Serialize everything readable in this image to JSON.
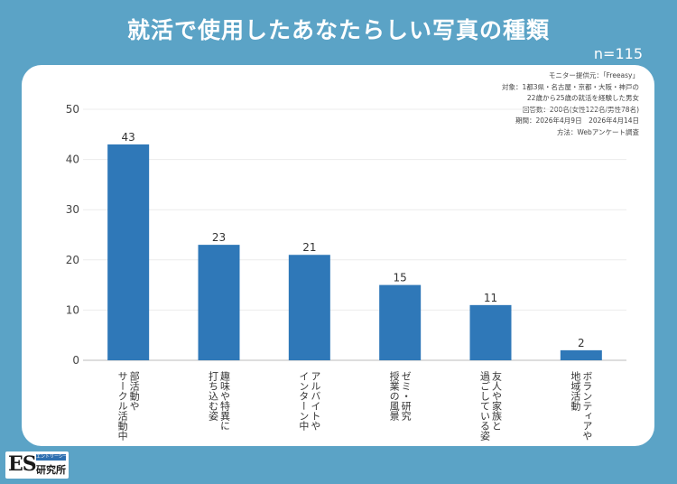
{
  "title": "就活で使用したあなたらしい写真の種類",
  "sample": "n=115",
  "notes": [
    "モニター提供元：「Freeasy」",
    "対象：1都3県・名古屋・京都・大阪・神戸の",
    "22歳から25歳の就活を経験した男女",
    "回答数：200名(女性122名/男性78名)",
    "期間：2026年4月9日　2026年4月14日",
    "方法：Webアンケート調査"
  ],
  "logo": {
    "mark": "ES",
    "tag": "エントリーシート",
    "name": "研究所"
  },
  "colors": {
    "background": "#5ba3c6",
    "bar": "#2f78b8",
    "card": "#ffffff"
  },
  "chart_data": {
    "type": "bar",
    "categories": [
      "部活動やサークル活動中",
      "趣味や特異に打ち込む姿",
      "アルバイトやインターン中",
      "ゼミ・研究授業の風景",
      "友人や家族と過ごしている姿",
      "ボランティアや地域活動"
    ],
    "category_lines": [
      [
        "部活動や",
        "サークル活動中"
      ],
      [
        "趣味や特異に",
        "打ち込む姿"
      ],
      [
        "アルバイトや",
        "インターン中"
      ],
      [
        "ゼミ・研究",
        "授業の風景"
      ],
      [
        "友人や家族と",
        "過ごしている姿"
      ],
      [
        "ボランティアや",
        "地域活動"
      ]
    ],
    "values": [
      43,
      23,
      21,
      15,
      11,
      2
    ],
    "ylim": [
      0,
      50
    ],
    "yticks": [
      0,
      10,
      20,
      30,
      40,
      50
    ],
    "title": "",
    "xlabel": "",
    "ylabel": "",
    "grid": true
  }
}
